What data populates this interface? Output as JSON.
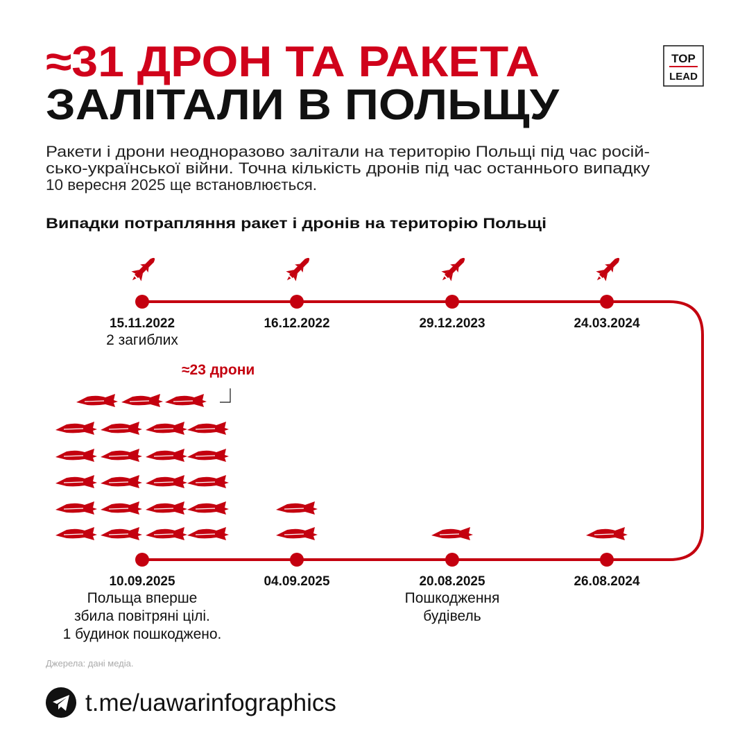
{
  "header": {
    "title_lines": [
      "≈31 ДРОН ТА РАКЕТА",
      "ЗАЛІТАЛИ В ПОЛЬЩУ"
    ],
    "logo": [
      "TOP",
      "LEAD"
    ]
  },
  "description": [
    "Ракети і дрони неодноразово залітали на територію Польщі під час росій-",
    "сько-української війни. Точна кількість дронів під час останнього випадку",
    "10 вересня 2025 ще встановлюється."
  ],
  "subtitle": "Випадки потрапляння ракет і дронів на територію Польщі",
  "events": [
    {
      "date": "15.11.2022",
      "note": [
        "2 загиблих"
      ],
      "rockets": 1
    },
    {
      "date": "16.12.2022",
      "rockets": 1
    },
    {
      "date": "29.12.2023",
      "rockets": 1
    },
    {
      "date": "24.03.2024",
      "rockets": 1
    },
    {
      "date": "26.08.2024",
      "drones": 1
    },
    {
      "date": "20.08.2025",
      "note": [
        "Пошкодження",
        "будівель"
      ],
      "drones": 1
    },
    {
      "date": "04.09.2025",
      "drones": 2
    },
    {
      "date": "10.09.2025",
      "note": [
        "Польща вперше",
        "збила повітряні цілі.",
        "1 будинок пошкоджено."
      ],
      "drones": 23,
      "annotation": "≈23 дрони"
    }
  ],
  "source": "Джерела: дані медіа.",
  "link": "t.me/uawarinfographics"
}
